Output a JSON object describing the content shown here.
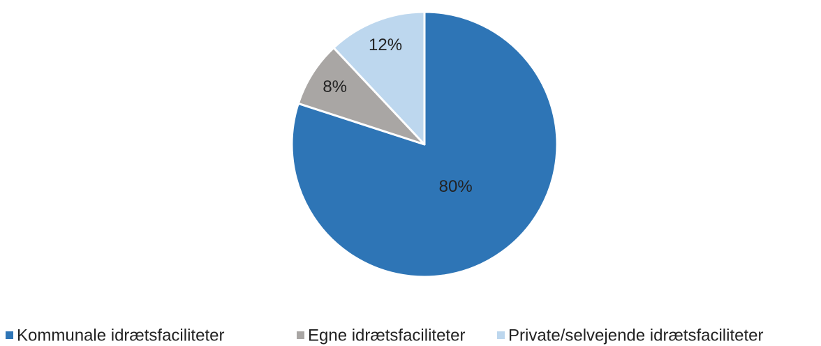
{
  "chart_data": {
    "type": "pie",
    "categories": [
      "Kommunale idrætsfaciliteter",
      "Egne idrætsfaciliteter",
      "Private/selvejende idrætsfaciliteter"
    ],
    "values": [
      80,
      8,
      12
    ],
    "value_labels": [
      "80%",
      "8%",
      "12%"
    ],
    "colors": [
      "#2E75B6",
      "#A9A6A4",
      "#BDD7EE"
    ],
    "legend": "bottom"
  }
}
